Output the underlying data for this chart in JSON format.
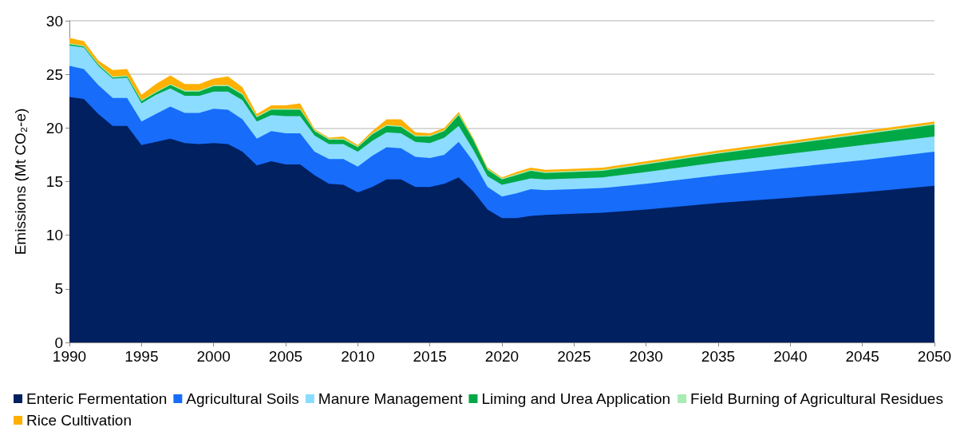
{
  "chart_data": {
    "type": "area",
    "stacked": true,
    "ylabel": "Emissions (Mt CO₂-e)",
    "x": [
      1990,
      1991,
      1992,
      1993,
      1994,
      1995,
      1996,
      1997,
      1998,
      1999,
      2000,
      2001,
      2002,
      2003,
      2004,
      2005,
      2006,
      2007,
      2008,
      2009,
      2010,
      2011,
      2012,
      2013,
      2014,
      2015,
      2016,
      2017,
      2018,
      2019,
      2020,
      2021,
      2022,
      2023,
      2025,
      2027,
      2030,
      2035,
      2040,
      2045,
      2050
    ],
    "series": [
      {
        "name": "Enteric Fermentation",
        "color": "#002060",
        "values": [
          22.9,
          22.7,
          21.3,
          20.2,
          20.2,
          18.4,
          18.7,
          19.0,
          18.6,
          18.5,
          18.6,
          18.5,
          17.8,
          16.5,
          16.9,
          16.6,
          16.6,
          15.6,
          14.8,
          14.7,
          14.0,
          14.5,
          15.2,
          15.2,
          14.5,
          14.5,
          14.8,
          15.4,
          14.1,
          12.4,
          11.6,
          11.6,
          11.8,
          11.9,
          12.0,
          12.1,
          12.4,
          13.0,
          13.5,
          14.0,
          14.6
        ]
      },
      {
        "name": "Agricultural Soils",
        "color": "#176cfa",
        "values": [
          2.9,
          2.8,
          2.7,
          2.6,
          2.6,
          2.2,
          2.6,
          3.0,
          2.8,
          2.9,
          3.2,
          3.2,
          3.0,
          2.5,
          2.8,
          2.9,
          2.9,
          2.2,
          2.3,
          2.4,
          2.4,
          2.9,
          3.0,
          2.9,
          2.8,
          2.7,
          2.7,
          3.3,
          2.8,
          2.1,
          2.0,
          2.3,
          2.5,
          2.3,
          2.3,
          2.3,
          2.4,
          2.6,
          2.8,
          3.0,
          3.2
        ]
      },
      {
        "name": "Manure Management",
        "color": "#8bdcff",
        "values": [
          1.9,
          2.0,
          1.8,
          1.8,
          1.9,
          1.7,
          1.8,
          1.7,
          1.6,
          1.6,
          1.6,
          1.7,
          1.8,
          1.6,
          1.5,
          1.6,
          1.6,
          1.5,
          1.4,
          1.4,
          1.4,
          1.4,
          1.4,
          1.4,
          1.4,
          1.4,
          1.6,
          1.5,
          1.1,
          1.0,
          1.1,
          1.1,
          1.0,
          1.0,
          1.0,
          1.0,
          1.1,
          1.2,
          1.3,
          1.4,
          1.4
        ]
      },
      {
        "name": "Liming and Urea Application",
        "color": "#00a846",
        "values": [
          0.1,
          0.1,
          0.1,
          0.1,
          0.1,
          0.2,
          0.2,
          0.3,
          0.4,
          0.4,
          0.5,
          0.5,
          0.5,
          0.4,
          0.5,
          0.6,
          0.6,
          0.4,
          0.4,
          0.4,
          0.4,
          0.6,
          0.6,
          0.6,
          0.5,
          0.6,
          0.6,
          1.0,
          0.9,
          0.6,
          0.5,
          0.6,
          0.7,
          0.6,
          0.6,
          0.6,
          0.7,
          0.8,
          0.9,
          1.0,
          1.1
        ]
      },
      {
        "name": "Field Burning of Agricultural Residues",
        "color": "#a8ecb4",
        "values": [
          0.1,
          0.1,
          0.1,
          0.1,
          0.1,
          0.1,
          0.1,
          0.1,
          0.1,
          0.1,
          0.1,
          0.1,
          0.1,
          0.1,
          0.1,
          0.1,
          0.1,
          0.1,
          0.1,
          0.1,
          0.1,
          0.1,
          0.1,
          0.1,
          0.1,
          0.1,
          0.1,
          0.1,
          0.1,
          0.1,
          0.1,
          0.1,
          0.1,
          0.1,
          0.1,
          0.1,
          0.1,
          0.1,
          0.1,
          0.1,
          0.1
        ]
      },
      {
        "name": "Rice Cultivation",
        "color": "#ffb000",
        "values": [
          0.5,
          0.4,
          0.3,
          0.6,
          0.6,
          0.5,
          0.7,
          0.8,
          0.6,
          0.6,
          0.6,
          0.8,
          0.6,
          0.2,
          0.3,
          0.3,
          0.5,
          0.1,
          0.1,
          0.2,
          0.1,
          0.2,
          0.5,
          0.6,
          0.3,
          0.2,
          0.2,
          0.2,
          0.1,
          0.1,
          0.1,
          0.2,
          0.2,
          0.2,
          0.2,
          0.2,
          0.2,
          0.2,
          0.2,
          0.2,
          0.2
        ]
      }
    ],
    "xlim": [
      1990,
      2050
    ],
    "xticks": [
      1990,
      1995,
      2000,
      2005,
      2010,
      2015,
      2020,
      2025,
      2030,
      2035,
      2040,
      2045,
      2050
    ],
    "ylim": [
      0,
      30
    ],
    "yticks": [
      0,
      5,
      10,
      15,
      20,
      25,
      30
    ],
    "grid": "y",
    "legend": "bottom"
  }
}
